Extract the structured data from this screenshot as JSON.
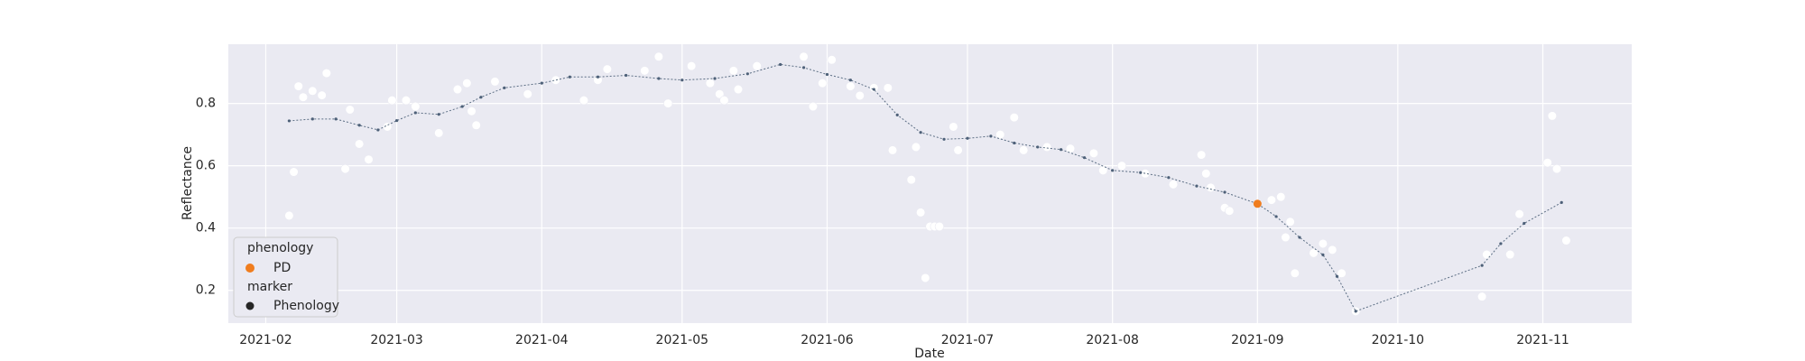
{
  "chart_data": {
    "type": "line",
    "x_label": "Date",
    "y_label": "Reflectance",
    "xlim": [
      "2021-01-24",
      "2021-11-20"
    ],
    "xticks": [
      "2021-02",
      "2021-03",
      "2021-04",
      "2021-05",
      "2021-06",
      "2021-07",
      "2021-08",
      "2021-09",
      "2021-10",
      "2021-11"
    ],
    "ylim": [
      0.095,
      0.99
    ],
    "yticks": [
      0.2,
      0.4,
      0.6,
      0.8
    ],
    "grid": true,
    "background": "#eaeaf2",
    "grid_color": "#ffffff",
    "legend_position": "lower left",
    "legend_title": "phenology",
    "marker_title": "marker",
    "marker_label": "Phenology",
    "marker_color": "#262626",
    "series": [
      {
        "kind": "scatter",
        "color": "#ffffff",
        "x": [
          "2021-02-06",
          "2021-02-07",
          "2021-02-08",
          "2021-02-09",
          "2021-02-11",
          "2021-02-13",
          "2021-02-14",
          "2021-02-18",
          "2021-02-19",
          "2021-02-21",
          "2021-02-23",
          "2021-02-27",
          "2021-02-28",
          "2021-03-03",
          "2021-03-05",
          "2021-03-10",
          "2021-03-14",
          "2021-03-16",
          "2021-03-17",
          "2021-03-18",
          "2021-03-22",
          "2021-03-29",
          "2021-04-04",
          "2021-04-10",
          "2021-04-13",
          "2021-04-15",
          "2021-04-23",
          "2021-04-26",
          "2021-04-28",
          "2021-05-03",
          "2021-05-07",
          "2021-05-09",
          "2021-05-10",
          "2021-05-12",
          "2021-05-13",
          "2021-05-17",
          "2021-05-27",
          "2021-05-29",
          "2021-05-31",
          "2021-06-02",
          "2021-06-06",
          "2021-06-08",
          "2021-06-11",
          "2021-06-14",
          "2021-06-15",
          "2021-06-19",
          "2021-06-20",
          "2021-06-21",
          "2021-06-22",
          "2021-06-23",
          "2021-06-24",
          "2021-06-25",
          "2021-06-28",
          "2021-06-29",
          "2021-07-08",
          "2021-07-11",
          "2021-07-13",
          "2021-07-18",
          "2021-07-23",
          "2021-07-28",
          "2021-07-30",
          "2021-08-03",
          "2021-08-08",
          "2021-08-14",
          "2021-08-20",
          "2021-08-21",
          "2021-08-22",
          "2021-08-25",
          "2021-08-26",
          "2021-09-04",
          "2021-09-06",
          "2021-09-07",
          "2021-09-08",
          "2021-09-09",
          "2021-09-13",
          "2021-09-15",
          "2021-09-17",
          "2021-09-19",
          "2021-09-22",
          "2021-10-19",
          "2021-10-20",
          "2021-10-25",
          "2021-10-27",
          "2021-11-02",
          "2021-11-03",
          "2021-11-04",
          "2021-11-06"
        ],
        "values": [
          0.44,
          0.58,
          0.855,
          0.82,
          0.84,
          0.826,
          0.897,
          0.59,
          0.78,
          0.67,
          0.62,
          0.725,
          0.81,
          0.81,
          0.79,
          0.705,
          0.845,
          0.865,
          0.775,
          0.73,
          0.87,
          0.83,
          0.875,
          0.81,
          0.875,
          0.91,
          0.905,
          0.95,
          0.8,
          0.92,
          0.865,
          0.83,
          0.81,
          0.905,
          0.845,
          0.92,
          0.95,
          0.79,
          0.865,
          0.94,
          0.855,
          0.825,
          0.85,
          0.85,
          0.65,
          0.555,
          0.66,
          0.45,
          0.24,
          0.405,
          0.405,
          0.405,
          0.725,
          0.65,
          0.7,
          0.755,
          0.65,
          0.66,
          0.655,
          0.64,
          0.585,
          0.6,
          0.575,
          0.54,
          0.635,
          0.575,
          0.53,
          0.465,
          0.455,
          0.49,
          0.5,
          0.37,
          0.42,
          0.255,
          0.32,
          0.35,
          0.33,
          0.255,
          0.133,
          0.18,
          0.315,
          0.315,
          0.445,
          0.61,
          0.76,
          0.59,
          0.36
        ]
      },
      {
        "kind": "line",
        "color": "#4d6078",
        "x": [
          "2021-02-06",
          "2021-02-11",
          "2021-02-16",
          "2021-02-21",
          "2021-02-25",
          "2021-03-01",
          "2021-03-05",
          "2021-03-10",
          "2021-03-15",
          "2021-03-19",
          "2021-03-24",
          "2021-04-01",
          "2021-04-07",
          "2021-04-13",
          "2021-04-19",
          "2021-04-26",
          "2021-05-01",
          "2021-05-08",
          "2021-05-15",
          "2021-05-22",
          "2021-05-27",
          "2021-06-01",
          "2021-06-06",
          "2021-06-11",
          "2021-06-16",
          "2021-06-21",
          "2021-06-26",
          "2021-07-01",
          "2021-07-06",
          "2021-07-11",
          "2021-07-16",
          "2021-07-21",
          "2021-07-26",
          "2021-08-01",
          "2021-08-07",
          "2021-08-13",
          "2021-08-19",
          "2021-08-25",
          "2021-09-01",
          "2021-09-05",
          "2021-09-10",
          "2021-09-15",
          "2021-09-18",
          "2021-09-22",
          "2021-10-19",
          "2021-10-23",
          "2021-10-28",
          "2021-11-05"
        ],
        "values": [
          0.744,
          0.75,
          0.75,
          0.73,
          0.715,
          0.745,
          0.77,
          0.765,
          0.79,
          0.82,
          0.85,
          0.865,
          0.885,
          0.885,
          0.89,
          0.88,
          0.875,
          0.88,
          0.895,
          0.925,
          0.915,
          0.893,
          0.875,
          0.845,
          0.763,
          0.707,
          0.685,
          0.688,
          0.695,
          0.673,
          0.66,
          0.652,
          0.626,
          0.585,
          0.578,
          0.562,
          0.535,
          0.515,
          0.478,
          0.437,
          0.37,
          0.314,
          0.245,
          0.133,
          0.28,
          0.35,
          0.415,
          0.482
        ]
      },
      {
        "kind": "scatter",
        "name": "PD",
        "color": "#f07d1e",
        "x": [
          "2021-09-01"
        ],
        "values": [
          0.478
        ]
      }
    ]
  }
}
